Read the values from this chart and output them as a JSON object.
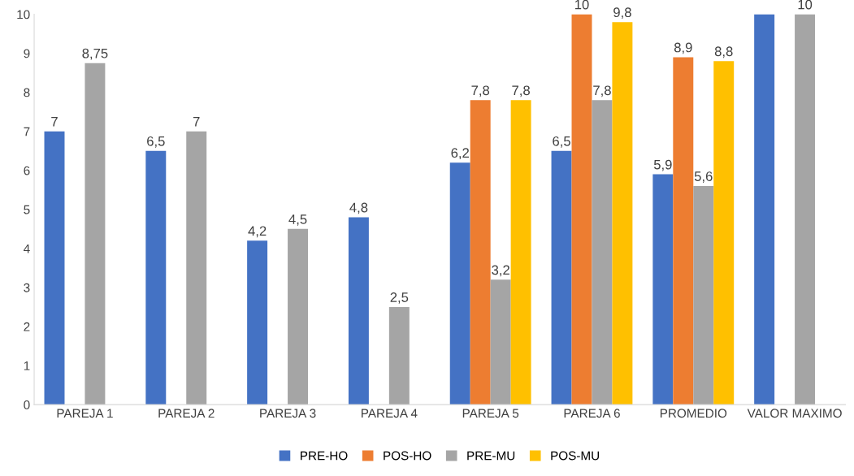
{
  "chart_data": {
    "type": "bar",
    "categories": [
      "PAREJA 1",
      "PAREJA 2",
      "PAREJA 3",
      "PAREJA 4",
      "PAREJA 5",
      "PAREJA 6",
      "PROMEDIO",
      "VALOR MAXIMO"
    ],
    "series": [
      {
        "name": "PRE-HO",
        "color": "#4472c4",
        "values": [
          7,
          6.5,
          4.2,
          4.8,
          6.2,
          6.5,
          5.9,
          10
        ],
        "value_labels": [
          "7",
          "6,5",
          "4,2",
          "4,8",
          "6,2",
          "6,5",
          "5,9",
          null
        ]
      },
      {
        "name": "POS-HO",
        "color": "#ed7d31",
        "values": [
          null,
          null,
          null,
          null,
          7.8,
          10,
          8.9,
          null
        ],
        "value_labels": [
          null,
          null,
          null,
          null,
          "7,8",
          "10",
          "8,9",
          null
        ]
      },
      {
        "name": "PRE-MU",
        "color": "#a5a5a5",
        "values": [
          8.75,
          7,
          4.5,
          2.5,
          3.2,
          7.8,
          5.6,
          10
        ],
        "value_labels": [
          "8,75",
          "7",
          "4,5",
          "2,5",
          "3,2",
          "7,8",
          "5,6",
          "10"
        ]
      },
      {
        "name": "POS-MU",
        "color": "#ffc000",
        "values": [
          null,
          null,
          null,
          null,
          7.8,
          9.8,
          8.8,
          null
        ],
        "value_labels": [
          null,
          null,
          null,
          null,
          "7,8",
          "9,8",
          "8,8",
          null
        ]
      }
    ],
    "ylim": [
      0,
      10
    ],
    "yticks": [
      0,
      1,
      2,
      3,
      4,
      5,
      6,
      7,
      8,
      9,
      10
    ],
    "grid": false,
    "legend": "bottom"
  }
}
